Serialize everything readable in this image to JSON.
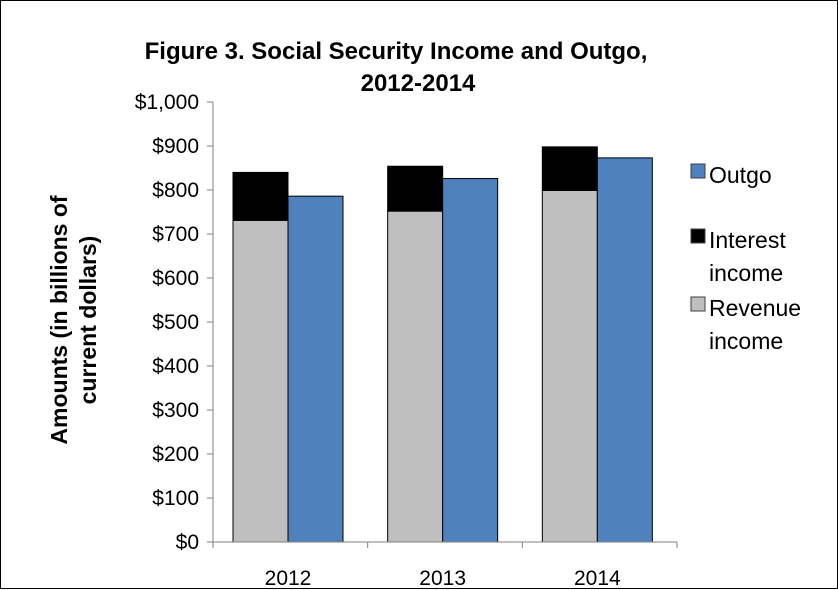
{
  "chart_data": {
    "type": "bar",
    "title": "Figure 3. Social Security Income and Outgo, 2012-2014",
    "title_lines": [
      "Figure 3. Social Security Income and Outgo,",
      "2012-2014"
    ],
    "ylabel": "Amounts (in billions of current dollars)",
    "ylabel_lines": [
      "Amounts (in billions of",
      "current dollars)"
    ],
    "xlabel": "",
    "categories": [
      "2012",
      "2013",
      "2014"
    ],
    "ylim": [
      0,
      1000
    ],
    "yticks": [
      0,
      100,
      200,
      300,
      400,
      500,
      600,
      700,
      800,
      900,
      1000
    ],
    "ytick_labels": [
      "$0",
      "$100",
      "$200",
      "$300",
      "$400",
      "$500",
      "$600",
      "$700",
      "$800",
      "$900",
      "$1,000"
    ],
    "grid": false,
    "legend_position": "right",
    "stacked_income": [
      {
        "name": "Revenue income",
        "values": [
          731,
          752,
          799
        ],
        "color": "#bfbfbf"
      },
      {
        "name": "Interest income",
        "values": [
          109,
          102,
          99
        ],
        "color": "#000000"
      }
    ],
    "outgo": {
      "name": "Outgo",
      "values": [
        786,
        826,
        873
      ],
      "color": "#4f81bd"
    },
    "legend": [
      {
        "key": "outgo",
        "lines": [
          "Outgo"
        ],
        "color": "#4f81bd"
      },
      {
        "key": "interest",
        "lines": [
          "Interest",
          "income"
        ],
        "color": "#000000"
      },
      {
        "key": "revenue",
        "lines": [
          "Revenue",
          "income"
        ],
        "color": "#bfbfbf"
      }
    ]
  }
}
